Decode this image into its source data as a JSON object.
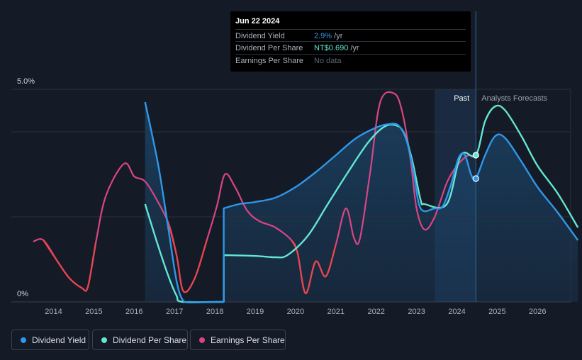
{
  "tooltip": {
    "date": "Jun 22 2024",
    "rows": [
      {
        "label": "Dividend Yield",
        "value": "2.9%",
        "unit": " /yr",
        "color": "#2f97e8"
      },
      {
        "label": "Dividend Per Share",
        "value": "NT$0.690",
        "unit": " /yr",
        "color": "#63e6d2"
      },
      {
        "label": "Earnings Per Share",
        "value": "No data",
        "unit": "",
        "color": "#5d6570"
      }
    ]
  },
  "legend": [
    {
      "label": "Dividend Yield",
      "color": "#2f97e8"
    },
    {
      "label": "Dividend Per Share",
      "color": "#63e6d2"
    },
    {
      "label": "Earnings Per Share",
      "color": "#d94583"
    }
  ],
  "chart_data": {
    "type": "line",
    "title": "",
    "xlabel": "",
    "ylabel": "",
    "xlim": [
      2013.5,
      2027.0
    ],
    "ylim": [
      0,
      5.0
    ],
    "x_ticks": [
      "2014",
      "2015",
      "2016",
      "2017",
      "2018",
      "2019",
      "2020",
      "2021",
      "2022",
      "2023",
      "2024",
      "2025",
      "2026"
    ],
    "y_tick_labels": [
      {
        "value": 5.0,
        "label": "5.0%"
      },
      {
        "value": 0,
        "label": "0%"
      }
    ],
    "gridlines": [
      0,
      2,
      4,
      5
    ],
    "past_label": "Past",
    "forecast_label": "Analysts Forecasts",
    "past_region": [
      2023.45,
      2024.47
    ],
    "current_x": 2024.47,
    "series": [
      {
        "name": "Dividend Yield",
        "color": "#2f97e8",
        "points": [
          [
            2016.27,
            4.7
          ],
          [
            2016.6,
            3.2
          ],
          [
            2016.85,
            1.7
          ],
          [
            2017.05,
            0.5
          ],
          [
            2017.2,
            0.05
          ],
          [
            2017.4,
            0.0
          ],
          [
            2018.0,
            0.0
          ],
          [
            2018.22,
            0.0
          ],
          [
            2018.22,
            2.2
          ],
          [
            2018.6,
            2.3
          ],
          [
            2019.0,
            2.35
          ],
          [
            2019.5,
            2.45
          ],
          [
            2020.0,
            2.7
          ],
          [
            2020.5,
            3.05
          ],
          [
            2021.0,
            3.45
          ],
          [
            2021.5,
            3.85
          ],
          [
            2022.0,
            4.1
          ],
          [
            2022.3,
            4.18
          ],
          [
            2022.55,
            4.15
          ],
          [
            2022.75,
            3.8
          ],
          [
            2022.92,
            3.1
          ],
          [
            2023.1,
            2.2
          ],
          [
            2023.45,
            2.2
          ],
          [
            2023.65,
            2.25
          ],
          [
            2023.85,
            2.75
          ],
          [
            2024.05,
            3.4
          ],
          [
            2024.2,
            3.45
          ],
          [
            2024.35,
            3.0
          ],
          [
            2024.47,
            2.9
          ],
          [
            2024.7,
            3.45
          ],
          [
            2024.95,
            3.9
          ],
          [
            2025.2,
            3.85
          ],
          [
            2025.6,
            3.3
          ],
          [
            2026.0,
            2.7
          ],
          [
            2026.5,
            2.1
          ],
          [
            2027.0,
            1.45
          ]
        ]
      },
      {
        "name": "Dividend Per Share",
        "color": "#63e6d2",
        "points": [
          [
            2016.27,
            2.3
          ],
          [
            2016.6,
            1.3
          ],
          [
            2016.85,
            0.6
          ],
          [
            2017.05,
            0.15
          ],
          [
            2017.2,
            0.0
          ],
          [
            2018.22,
            0.0
          ],
          [
            2018.22,
            1.1
          ],
          [
            2019.0,
            1.08
          ],
          [
            2019.5,
            1.05
          ],
          [
            2019.8,
            1.1
          ],
          [
            2020.3,
            1.55
          ],
          [
            2020.8,
            2.3
          ],
          [
            2021.3,
            3.05
          ],
          [
            2021.8,
            3.75
          ],
          [
            2022.2,
            4.12
          ],
          [
            2022.5,
            4.15
          ],
          [
            2022.7,
            3.95
          ],
          [
            2022.9,
            3.3
          ],
          [
            2023.1,
            2.4
          ],
          [
            2023.2,
            2.3
          ],
          [
            2023.75,
            2.3
          ],
          [
            2024.1,
            3.45
          ],
          [
            2024.47,
            3.45
          ],
          [
            2024.7,
            4.25
          ],
          [
            2024.95,
            4.6
          ],
          [
            2025.2,
            4.5
          ],
          [
            2025.6,
            3.9
          ],
          [
            2026.0,
            3.2
          ],
          [
            2026.5,
            2.55
          ],
          [
            2027.0,
            1.75
          ]
        ]
      },
      {
        "name": "Earnings Per Share",
        "color": "#d94583",
        "points": [
          [
            2013.5,
            1.42
          ],
          [
            2013.75,
            1.45
          ],
          [
            2014.1,
            0.95
          ],
          [
            2014.4,
            0.55
          ],
          [
            2014.7,
            0.33
          ],
          [
            2014.85,
            0.35
          ],
          [
            2015.05,
            1.4
          ],
          [
            2015.3,
            2.5
          ],
          [
            2015.75,
            3.25
          ],
          [
            2016.0,
            2.95
          ],
          [
            2016.25,
            2.85
          ],
          [
            2016.5,
            2.5
          ],
          [
            2016.85,
            1.85
          ],
          [
            2017.05,
            1.1
          ],
          [
            2017.22,
            0.25
          ],
          [
            2017.5,
            0.55
          ],
          [
            2017.8,
            1.45
          ],
          [
            2018.05,
            2.25
          ],
          [
            2018.25,
            3.0
          ],
          [
            2018.5,
            2.7
          ],
          [
            2018.8,
            2.15
          ],
          [
            2019.1,
            1.9
          ],
          [
            2019.5,
            1.75
          ],
          [
            2019.9,
            1.45
          ],
          [
            2020.05,
            1.15
          ],
          [
            2020.25,
            0.2
          ],
          [
            2020.5,
            0.95
          ],
          [
            2020.75,
            0.6
          ],
          [
            2021.0,
            1.35
          ],
          [
            2021.25,
            2.2
          ],
          [
            2021.45,
            1.5
          ],
          [
            2021.6,
            1.5
          ],
          [
            2021.85,
            3.05
          ],
          [
            2022.1,
            4.7
          ],
          [
            2022.45,
            4.9
          ],
          [
            2022.65,
            4.45
          ],
          [
            2022.85,
            3.35
          ],
          [
            2023.0,
            2.2
          ],
          [
            2023.2,
            1.7
          ],
          [
            2023.45,
            2.0
          ],
          [
            2023.75,
            2.8
          ],
          [
            2024.0,
            3.2
          ],
          [
            2024.2,
            3.4
          ],
          [
            2024.3,
            3.45
          ]
        ]
      }
    ],
    "markers": [
      {
        "series": "Dividend Per Share",
        "x": 2024.47,
        "y": 3.45
      },
      {
        "series": "Dividend Yield",
        "x": 2024.47,
        "y": 2.9
      }
    ]
  }
}
